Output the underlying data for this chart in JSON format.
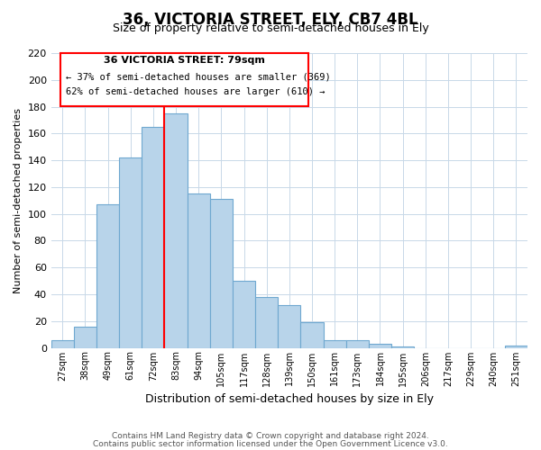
{
  "title": "36, VICTORIA STREET, ELY, CB7 4BL",
  "subtitle": "Size of property relative to semi-detached houses in Ely",
  "xlabel": "Distribution of semi-detached houses by size in Ely",
  "ylabel": "Number of semi-detached properties",
  "categories": [
    "27sqm",
    "38sqm",
    "49sqm",
    "61sqm",
    "72sqm",
    "83sqm",
    "94sqm",
    "105sqm",
    "117sqm",
    "128sqm",
    "139sqm",
    "150sqm",
    "161sqm",
    "173sqm",
    "184sqm",
    "195sqm",
    "206sqm",
    "217sqm",
    "229sqm",
    "240sqm",
    "251sqm"
  ],
  "values": [
    6,
    16,
    107,
    142,
    165,
    175,
    115,
    111,
    50,
    38,
    32,
    19,
    6,
    6,
    3,
    1,
    0,
    0,
    0,
    0,
    2
  ],
  "bar_color": "#b8d4ea",
  "bar_edge_color": "#6fa8d0",
  "property_line_x": 4.5,
  "annotation_title": "36 VICTORIA STREET: 79sqm",
  "annotation_line1": "← 37% of semi-detached houses are smaller (369)",
  "annotation_line2": "62% of semi-detached houses are larger (610) →",
  "ylim": [
    0,
    220
  ],
  "yticks": [
    0,
    20,
    40,
    60,
    80,
    100,
    120,
    140,
    160,
    180,
    200,
    220
  ],
  "footer1": "Contains HM Land Registry data © Crown copyright and database right 2024.",
  "footer2": "Contains public sector information licensed under the Open Government Licence v3.0.",
  "bg_color": "#ffffff",
  "grid_color": "#c8d8e8"
}
